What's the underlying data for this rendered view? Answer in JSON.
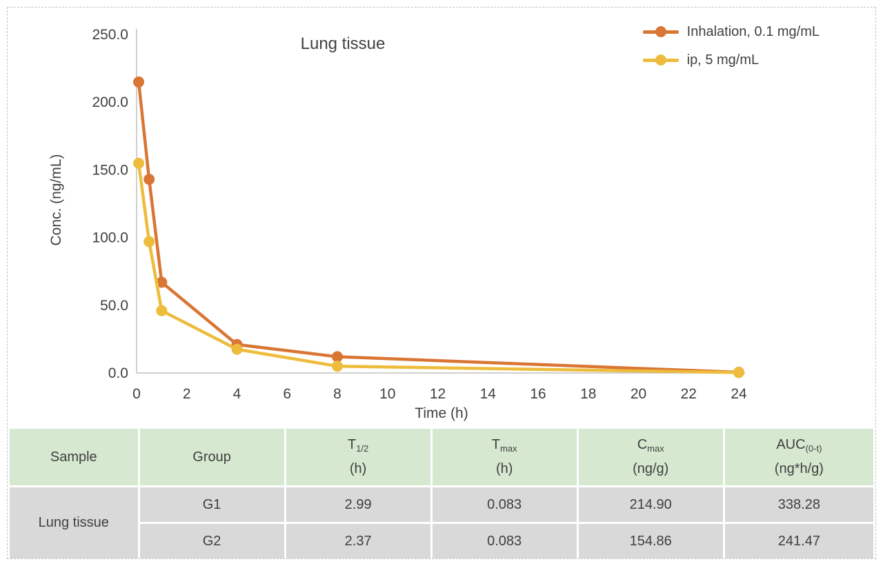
{
  "chart_data": {
    "type": "line",
    "title": "Lung tissue",
    "xlabel": "Time (h)",
    "ylabel": "Conc. (ng/mL)",
    "xlim": [
      0,
      24
    ],
    "ylim": [
      0,
      250
    ],
    "x_ticks": [
      0,
      2,
      4,
      6,
      8,
      10,
      12,
      14,
      16,
      18,
      20,
      22,
      24
    ],
    "y_ticks": [
      "0.0",
      "50.0",
      "100.0",
      "150.0",
      "200.0",
      "250.0"
    ],
    "grid": false,
    "legend_position": "top-right",
    "x": [
      0.083,
      0.5,
      1,
      4,
      8,
      24
    ],
    "series": [
      {
        "name": "Inhalation, 0.1 mg/mL",
        "color": "#DA7634",
        "values": [
          214.9,
          143,
          67,
          21,
          12,
          0.5
        ]
      },
      {
        "name": "ip, 5 mg/mL",
        "color": "#EEBC3C",
        "values": [
          154.86,
          97,
          46,
          17.5,
          5,
          0.3
        ]
      }
    ]
  },
  "table": {
    "sample_label": "Lung tissue",
    "headers": [
      {
        "base": "Sample"
      },
      {
        "base": "Group"
      },
      {
        "base": "T",
        "sub": "1/2",
        "unit": "(h)"
      },
      {
        "base": "T",
        "sub": "max",
        "unit": "(h)"
      },
      {
        "base": "C",
        "sub": "max",
        "unit": "(ng/g)"
      },
      {
        "base": "AUC",
        "sub": "(0-t)",
        "unit": "(ng*h/g)"
      }
    ],
    "rows": [
      {
        "group": "G1",
        "t_half": "2.99",
        "t_max": "0.083",
        "c_max": "214.90",
        "auc": "338.28"
      },
      {
        "group": "G2",
        "t_half": "2.37",
        "t_max": "0.083",
        "c_max": "154.86",
        "auc": "241.47"
      }
    ]
  },
  "colors": {
    "axis": "#bfbfbf",
    "header_bg": "#d6e8d0",
    "body_bg": "#d9d9d9",
    "text": "#404040"
  }
}
